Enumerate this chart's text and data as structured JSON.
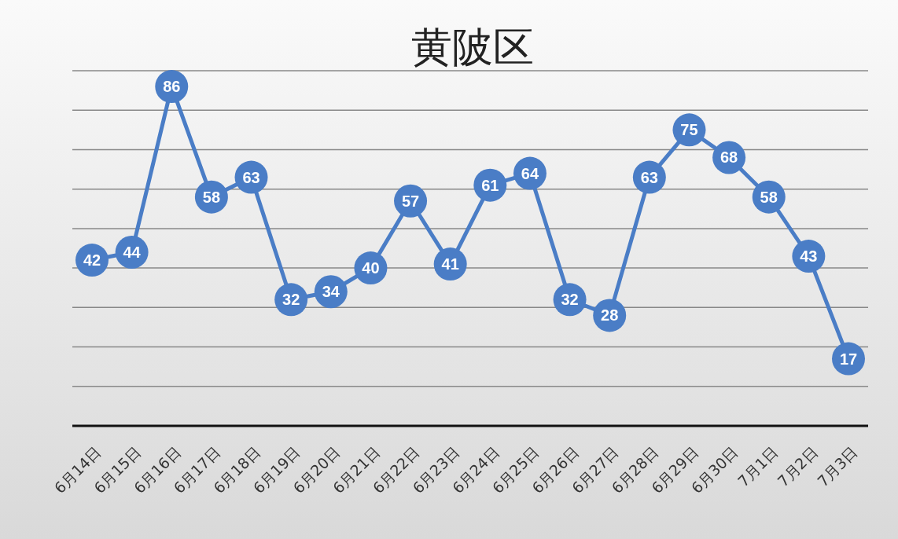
{
  "chart_data": {
    "type": "line",
    "title": "黄陂区",
    "categories": [
      "6月14日",
      "6月15日",
      "6月16日",
      "6月17日",
      "6月18日",
      "6月19日",
      "6月20日",
      "6月21日",
      "6月22日",
      "6月23日",
      "6月24日",
      "6月25日",
      "6月26日",
      "6月27日",
      "6月28日",
      "6月29日",
      "6月30日",
      "7月1日",
      "7月2日",
      "7月3日"
    ],
    "series": [
      {
        "color": "#4a7dc6",
        "values": [
          42,
          44,
          86,
          58,
          63,
          32,
          34,
          40,
          57,
          41,
          61,
          64,
          32,
          28,
          63,
          75,
          68,
          58,
          43,
          17
        ]
      }
    ],
    "ylim": [
      0,
      90
    ],
    "yticks": [
      {
        "value": 0,
        "label": null
      },
      {
        "value": 10,
        "label": null
      },
      {
        "value": 20,
        "label": null
      },
      {
        "value": 30,
        "label": null
      },
      {
        "value": 40,
        "label": null
      },
      {
        "value": 50,
        "label": null
      },
      {
        "value": 60,
        "label": null
      },
      {
        "value": 70,
        "label": null
      },
      {
        "value": 80,
        "label": null
      },
      {
        "value": 90,
        "label": null
      }
    ],
    "grid": "y",
    "marker": "circle",
    "line_style": "solid",
    "data_labels": true,
    "tick_labels": "x"
  }
}
